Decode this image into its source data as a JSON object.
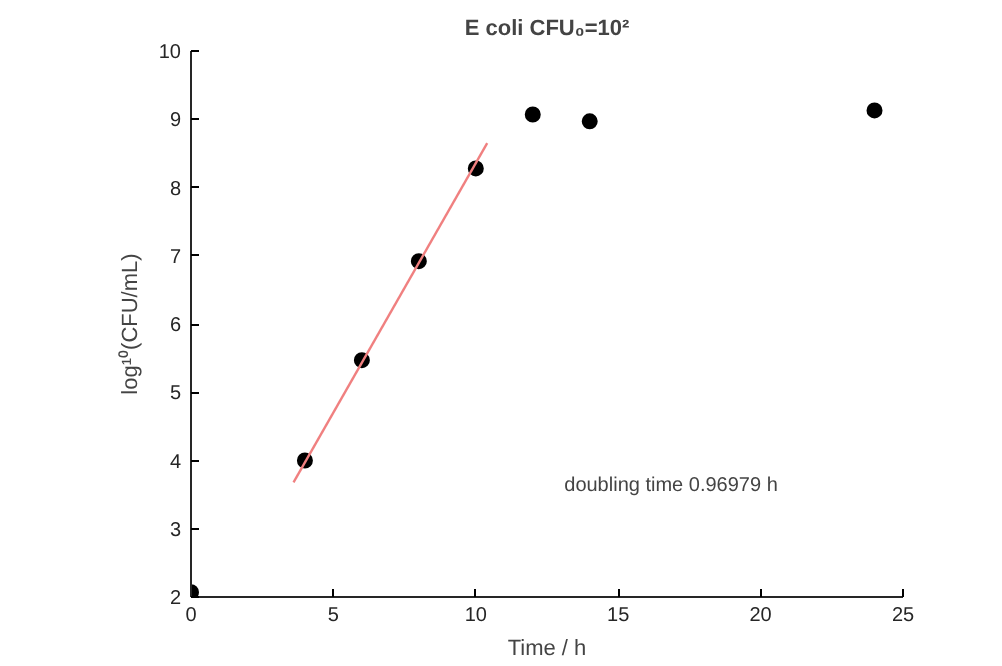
{
  "chart_data": {
    "type": "scatter",
    "title": "E coli CFU₀=10²",
    "xlabel": "Time / h",
    "ylabel": "log¹⁰(CFU/mL)",
    "x": [
      0,
      4,
      6,
      8,
      10,
      12,
      14,
      24
    ],
    "series": [
      {
        "type": "scatter",
        "color": "#000000",
        "marker": "circle",
        "values": [
          2.07,
          4.0,
          5.47,
          6.92,
          8.28,
          9.07,
          8.97,
          9.13
        ]
      },
      {
        "type": "line",
        "color": "#f08080",
        "line_style": "solid",
        "x": [
          3.6,
          10.4
        ],
        "values": [
          3.68,
          8.65
        ]
      }
    ],
    "annotations": [
      "doubling time 0.96979 h"
    ],
    "xlim": [
      0,
      25
    ],
    "ylim": [
      2,
      10
    ],
    "xticks": [
      0,
      5,
      10,
      15,
      20,
      25
    ],
    "yticks": [
      2,
      3,
      4,
      5,
      6,
      7,
      8,
      9,
      10
    ],
    "grid": false
  }
}
